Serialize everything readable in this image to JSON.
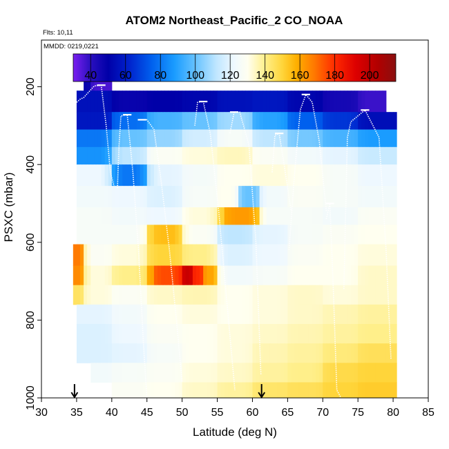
{
  "chart_data": {
    "type": "heatmap",
    "title": "ATOM2 Northeast_Pacific_2 CO_NOAA",
    "flights_label": "Flts: 10,11",
    "dates_label": "MMDD: 0219,0221",
    "xlabel": "Latitude (deg N)",
    "ylabel": "PSXC (mbar)",
    "xlim": [
      30,
      85
    ],
    "ylim": [
      1000,
      80
    ],
    "x_ticks": [
      "30",
      "35",
      "40",
      "45",
      "50",
      "55",
      "60",
      "65",
      "70",
      "75",
      "80",
      "85"
    ],
    "y_ticks": [
      "200",
      "400",
      "600",
      "800",
      "1000"
    ],
    "colorbar": {
      "range": [
        30,
        215
      ],
      "ticks": [
        "40",
        "60",
        "80",
        "100",
        "120",
        "140",
        "160",
        "180",
        "200"
      ],
      "stops": [
        {
          "v": 30,
          "c": "#7a1ff0"
        },
        {
          "v": 40,
          "c": "#2a0fbf"
        },
        {
          "v": 50,
          "c": "#0000a8"
        },
        {
          "v": 62,
          "c": "#0022cc"
        },
        {
          "v": 75,
          "c": "#0060ee"
        },
        {
          "v": 88,
          "c": "#1a9cff"
        },
        {
          "v": 100,
          "c": "#66c2ff"
        },
        {
          "v": 112,
          "c": "#bfe6ff"
        },
        {
          "v": 122,
          "c": "#eef8ff"
        },
        {
          "v": 130,
          "c": "#fffff0"
        },
        {
          "v": 140,
          "c": "#ffef8a"
        },
        {
          "v": 150,
          "c": "#ffd53a"
        },
        {
          "v": 158,
          "c": "#ffb000"
        },
        {
          "v": 168,
          "c": "#ff7a00"
        },
        {
          "v": 180,
          "c": "#ff2a00"
        },
        {
          "v": 192,
          "c": "#dd0000"
        },
        {
          "v": 205,
          "c": "#b00000"
        },
        {
          "v": 215,
          "c": "#8a1010"
        }
      ]
    },
    "pressure_bins": [
      {
        "top": 170,
        "bottom": 210
      },
      {
        "top": 210,
        "bottom": 265
      },
      {
        "top": 265,
        "bottom": 310
      },
      {
        "top": 310,
        "bottom": 355
      },
      {
        "top": 355,
        "bottom": 400
      },
      {
        "top": 400,
        "bottom": 455
      },
      {
        "top": 455,
        "bottom": 510
      },
      {
        "top": 510,
        "bottom": 555
      },
      {
        "top": 555,
        "bottom": 605
      },
      {
        "top": 605,
        "bottom": 660
      },
      {
        "top": 660,
        "bottom": 710
      },
      {
        "top": 710,
        "bottom": 760
      },
      {
        "top": 760,
        "bottom": 810
      },
      {
        "top": 810,
        "bottom": 860
      },
      {
        "top": 860,
        "bottom": 910
      },
      {
        "top": 910,
        "bottom": 960
      },
      {
        "top": 960,
        "bottom": 1000
      }
    ],
    "rows": [
      [
        [
          36,
          37,
          48
        ],
        [
          37,
          40,
          36
        ]
      ],
      [
        [
          35,
          40,
          56
        ],
        [
          40,
          45,
          48
        ],
        [
          45,
          50,
          50
        ],
        [
          50,
          55,
          52
        ],
        [
          55,
          60,
          56
        ],
        [
          60,
          65,
          58
        ],
        [
          65,
          70,
          52
        ],
        [
          70,
          75,
          45
        ],
        [
          75,
          79,
          38
        ]
      ],
      [
        [
          35,
          40,
          58
        ],
        [
          40,
          45,
          78
        ],
        [
          45,
          50,
          95
        ],
        [
          50,
          55,
          100
        ],
        [
          55,
          60,
          108
        ],
        [
          60,
          65,
          90
        ],
        [
          65,
          70,
          75
        ],
        [
          70,
          75,
          66
        ],
        [
          75,
          80.5,
          55
        ]
      ],
      [
        [
          35,
          40,
          80
        ],
        [
          40,
          45,
          100
        ],
        [
          45,
          50,
          106
        ],
        [
          50,
          55,
          116
        ],
        [
          55,
          60,
          126
        ],
        [
          60,
          65,
          112
        ],
        [
          65,
          70,
          102
        ],
        [
          70,
          75,
          95
        ],
        [
          75,
          80.5,
          88
        ]
      ],
      [
        [
          35,
          40,
          86
        ],
        [
          40,
          45,
          112
        ],
        [
          45,
          50,
          128
        ],
        [
          50,
          55,
          132
        ],
        [
          55,
          60,
          135
        ],
        [
          60,
          65,
          128
        ],
        [
          65,
          70,
          124
        ],
        [
          70,
          75,
          120
        ],
        [
          75,
          80.5,
          114
        ]
      ],
      [
        [
          35,
          40,
          122
        ],
        [
          40,
          45,
          80
        ],
        [
          45,
          50,
          120
        ],
        [
          50,
          55,
          125
        ],
        [
          55,
          60,
          130
        ],
        [
          60,
          65,
          132
        ],
        [
          65,
          70,
          130
        ],
        [
          70,
          75,
          126
        ],
        [
          75,
          80.5,
          122
        ]
      ],
      [
        [
          35,
          40,
          124
        ],
        [
          40,
          45,
          122
        ],
        [
          45,
          50,
          118
        ],
        [
          50,
          55,
          126
        ],
        [
          55,
          58,
          130
        ],
        [
          58,
          61,
          100
        ],
        [
          61,
          65,
          124
        ],
        [
          65,
          70,
          128
        ],
        [
          70,
          75,
          126
        ],
        [
          75,
          80.5,
          124
        ]
      ],
      [
        [
          35,
          40,
          126
        ],
        [
          40,
          45,
          124
        ],
        [
          45,
          50,
          122
        ],
        [
          50,
          55,
          132
        ],
        [
          55,
          56,
          150
        ],
        [
          56,
          61,
          162
        ],
        [
          61,
          65,
          126
        ],
        [
          65,
          70,
          126
        ],
        [
          70,
          75,
          124
        ],
        [
          75,
          80.5,
          128
        ]
      ],
      [
        [
          35,
          40,
          126
        ],
        [
          40,
          45,
          126
        ],
        [
          45,
          46,
          150
        ],
        [
          46,
          50,
          155
        ],
        [
          50,
          55,
          128
        ],
        [
          55,
          60,
          112
        ],
        [
          60,
          65,
          120
        ],
        [
          65,
          70,
          126
        ],
        [
          70,
          75,
          128
        ],
        [
          75,
          80.5,
          130
        ]
      ],
      [
        [
          34.5,
          36,
          168
        ],
        [
          36,
          40,
          128
        ],
        [
          40,
          45,
          132
        ],
        [
          45,
          50,
          150
        ],
        [
          50,
          55,
          140
        ],
        [
          55,
          60,
          118
        ],
        [
          60,
          65,
          122
        ],
        [
          65,
          70,
          128
        ],
        [
          70,
          75,
          130
        ],
        [
          75,
          80.5,
          132
        ]
      ],
      [
        [
          34.5,
          36,
          165
        ],
        [
          36,
          40,
          132
        ],
        [
          40,
          45,
          140
        ],
        [
          45,
          46,
          160
        ],
        [
          46,
          50,
          175
        ],
        [
          50,
          51.5,
          198
        ],
        [
          51.5,
          53,
          180
        ],
        [
          53,
          55,
          160
        ],
        [
          55,
          60,
          124
        ],
        [
          60,
          65,
          126
        ],
        [
          65,
          70,
          130
        ],
        [
          70,
          75,
          130
        ],
        [
          75,
          80.5,
          134
        ]
      ],
      [
        [
          34.5,
          36,
          145
        ],
        [
          36,
          40,
          132
        ],
        [
          40,
          45,
          128
        ],
        [
          45,
          50,
          134
        ],
        [
          50,
          55,
          136
        ],
        [
          55,
          60,
          130
        ],
        [
          60,
          65,
          132
        ],
        [
          65,
          70,
          134
        ],
        [
          70,
          75,
          132
        ],
        [
          75,
          80.5,
          134
        ]
      ],
      [
        [
          35,
          40,
          120
        ],
        [
          40,
          45,
          124
        ],
        [
          45,
          50,
          130
        ],
        [
          50,
          55,
          132
        ],
        [
          55,
          60,
          130
        ],
        [
          60,
          65,
          132
        ],
        [
          65,
          70,
          134
        ],
        [
          70,
          75,
          136
        ],
        [
          75,
          80.5,
          138
        ]
      ],
      [
        [
          35,
          40,
          118
        ],
        [
          40,
          45,
          122
        ],
        [
          45,
          50,
          128
        ],
        [
          50,
          55,
          130
        ],
        [
          55,
          60,
          132
        ],
        [
          60,
          65,
          134
        ],
        [
          65,
          70,
          136
        ],
        [
          70,
          75,
          138
        ],
        [
          75,
          80.5,
          140
        ]
      ],
      [
        [
          35,
          40,
          118
        ],
        [
          40,
          45,
          120
        ],
        [
          45,
          50,
          126
        ],
        [
          50,
          55,
          130
        ],
        [
          55,
          60,
          132
        ],
        [
          60,
          65,
          136
        ],
        [
          65,
          70,
          138
        ],
        [
          70,
          75,
          142
        ],
        [
          75,
          80.5,
          146
        ]
      ],
      [
        [
          37,
          40,
          124
        ],
        [
          40,
          45,
          126
        ],
        [
          45,
          50,
          128
        ],
        [
          50,
          55,
          132
        ],
        [
          55,
          60,
          134
        ],
        [
          60,
          65,
          138
        ],
        [
          65,
          70,
          140
        ],
        [
          70,
          75,
          148
        ],
        [
          75,
          80.5,
          150
        ]
      ],
      [
        [
          40,
          45,
          128
        ],
        [
          45,
          50,
          130
        ],
        [
          50,
          55,
          134
        ],
        [
          55,
          60,
          138
        ],
        [
          60,
          65,
          144
        ],
        [
          65,
          70,
          146
        ],
        [
          70,
          75,
          150
        ],
        [
          75,
          80.5,
          152
        ]
      ]
    ],
    "profiles": [
      [
        [
          35,
          240
        ],
        [
          35.5,
          232
        ],
        [
          36,
          228
        ],
        [
          37.5,
          198
        ],
        [
          38.5,
          196
        ],
        [
          39.2,
          300
        ],
        [
          39.8,
          420
        ],
        [
          40.3,
          455
        ]
      ],
      [
        [
          40.8,
          460
        ],
        [
          41,
          360
        ],
        [
          41.3,
          275
        ],
        [
          42.2,
          272
        ],
        [
          43,
          420
        ],
        [
          43.8,
          620
        ],
        [
          44.5,
          860
        ],
        [
          45,
          1000
        ]
      ],
      [
        [
          44.3,
          285
        ],
        [
          45,
          285
        ],
        [
          46,
          310
        ],
        [
          47,
          440
        ],
        [
          48.2,
          620
        ],
        [
          49.3,
          820
        ],
        [
          50,
          960
        ]
      ],
      [
        [
          51.8,
          300
        ],
        [
          52.2,
          240
        ],
        [
          53,
          238
        ],
        [
          54,
          320
        ],
        [
          55.2,
          520
        ],
        [
          56.5,
          780
        ],
        [
          57.5,
          980
        ]
      ],
      [
        [
          56.8,
          320
        ],
        [
          57.4,
          265
        ],
        [
          58.2,
          265
        ],
        [
          59.5,
          350
        ],
        [
          60.5,
          600
        ],
        [
          61.2,
          940
        ]
      ],
      [
        [
          62.8,
          420
        ],
        [
          63.2,
          325
        ],
        [
          63.8,
          320
        ],
        [
          64.5,
          400
        ],
        [
          65.5,
          520
        ]
      ],
      [
        [
          65.2,
          620
        ],
        [
          66,
          420
        ],
        [
          66.8,
          260
        ],
        [
          67.6,
          220
        ],
        [
          68.5,
          240
        ],
        [
          69.5,
          340
        ],
        [
          70.5,
          520
        ]
      ],
      [
        [
          70.5,
          540
        ],
        [
          71,
          500
        ],
        [
          71.5,
          720
        ],
        [
          72,
          980
        ],
        [
          72.6,
          1000
        ]
      ],
      [
        [
          73,
          720
        ],
        [
          73.5,
          330
        ],
        [
          74,
          290
        ],
        [
          76,
          260
        ],
        [
          78,
          330
        ],
        [
          79,
          620
        ],
        [
          79.7,
          900
        ]
      ]
    ],
    "arrows_lat": [
      34.7,
      61.3
    ]
  }
}
